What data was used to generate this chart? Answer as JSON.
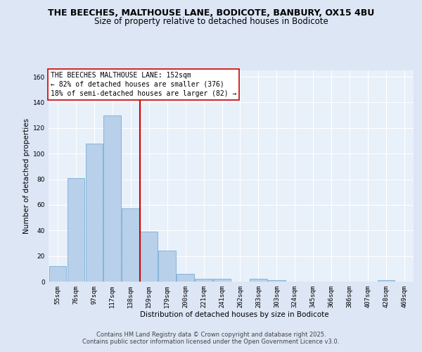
{
  "title1": "THE BEECHES, MALTHOUSE LANE, BODICOTE, BANBURY, OX15 4BU",
  "title2": "Size of property relative to detached houses in Bodicote",
  "xlabel": "Distribution of detached houses by size in Bodicote",
  "ylabel": "Number of detached properties",
  "bar_values": [
    12,
    81,
    108,
    130,
    57,
    39,
    24,
    6,
    2,
    2,
    0,
    2,
    1,
    0,
    0,
    0,
    0,
    0,
    1,
    0
  ],
  "bar_labels": [
    "55sqm",
    "76sqm",
    "97sqm",
    "117sqm",
    "138sqm",
    "159sqm",
    "179sqm",
    "200sqm",
    "221sqm",
    "241sqm",
    "262sqm",
    "283sqm",
    "303sqm",
    "324sqm",
    "345sqm",
    "366sqm",
    "386sqm",
    "407sqm",
    "428sqm",
    "469sqm"
  ],
  "bar_color": "#b8d0ea",
  "bar_edge_color": "#7aadd4",
  "vline_x": 4.5,
  "vline_color": "#cc0000",
  "annotation_line1": "THE BEECHES MALTHOUSE LANE: 152sqm",
  "annotation_line2": "← 82% of detached houses are smaller (376)",
  "annotation_line3": "18% of semi-detached houses are larger (82) →",
  "annotation_box_color": "#ffffff",
  "annotation_box_edge": "#cc0000",
  "ylim": [
    0,
    165
  ],
  "yticks": [
    0,
    20,
    40,
    60,
    80,
    100,
    120,
    140,
    160
  ],
  "footer1": "Contains HM Land Registry data © Crown copyright and database right 2025.",
  "footer2": "Contains public sector information licensed under the Open Government Licence v3.0.",
  "bg_color": "#dce6f5",
  "plot_bg_color": "#e8f0fa",
  "grid_color": "#ffffff",
  "title_fontsize": 9,
  "subtitle_fontsize": 8.5,
  "axis_label_fontsize": 7.5,
  "tick_fontsize": 6.5,
  "annotation_fontsize": 7,
  "footer_fontsize": 6
}
